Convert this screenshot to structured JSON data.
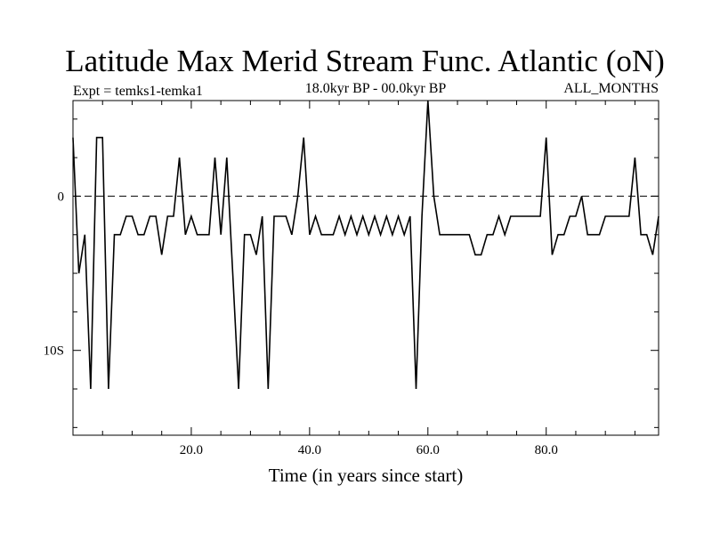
{
  "chart_data": {
    "type": "line",
    "title": "Latitude Max Merid Stream Func. Atlantic (oN)",
    "subtitle_left": "Expt = temks1-temka1",
    "subtitle_center": "18.0kyr BP - 00.0kyr BP",
    "subtitle_right": "ALL_MONTHS",
    "xlabel": "Time (in years since start)",
    "ylabel": "",
    "xlim": [
      0,
      99
    ],
    "ylim": [
      -15.5,
      6.2
    ],
    "x_ticks": [
      20,
      40,
      60,
      80
    ],
    "x_tick_labels": [
      "20.0",
      "40.0",
      "60.0",
      "80.0"
    ],
    "y_ticks": [
      0,
      -10
    ],
    "y_tick_labels": [
      "0",
      "10S"
    ],
    "zero_line": "dashed",
    "series": [
      {
        "name": "Expt = temks1-temka1",
        "color": "#000000",
        "x": [
          0,
          1,
          2,
          3,
          4,
          5,
          6,
          7,
          8,
          9,
          10,
          11,
          12,
          13,
          14,
          15,
          16,
          17,
          18,
          19,
          20,
          21,
          22,
          23,
          24,
          25,
          26,
          27,
          28,
          29,
          30,
          31,
          32,
          33,
          34,
          35,
          36,
          37,
          38,
          39,
          40,
          41,
          42,
          43,
          44,
          45,
          46,
          47,
          48,
          49,
          50,
          51,
          52,
          53,
          54,
          55,
          56,
          57,
          58,
          59,
          60,
          61,
          62,
          63,
          64,
          65,
          66,
          67,
          68,
          69,
          70,
          71,
          72,
          73,
          74,
          75,
          76,
          77,
          78,
          79,
          80,
          81,
          82,
          83,
          84,
          85,
          86,
          87,
          88,
          89,
          90,
          91,
          92,
          93,
          94,
          95,
          96,
          97,
          98,
          99
        ],
        "values": [
          3.8,
          -5,
          -2.5,
          -12.5,
          3.8,
          3.8,
          -12.5,
          -2.5,
          -2.5,
          -1.3,
          -1.3,
          -2.5,
          -2.5,
          -1.3,
          -1.3,
          -3.8,
          -1.3,
          -1.3,
          2.5,
          -2.5,
          -1.3,
          -2.5,
          -2.5,
          -2.5,
          2.5,
          -2.5,
          2.5,
          -5,
          -12.5,
          -2.5,
          -2.5,
          -3.8,
          -1.3,
          -12.5,
          -1.3,
          -1.3,
          -1.3,
          -2.5,
          0,
          3.8,
          -2.5,
          -1.3,
          -2.5,
          -2.5,
          -2.5,
          -1.3,
          -2.5,
          -1.3,
          -2.5,
          -1.3,
          -2.5,
          -1.3,
          -2.5,
          -1.3,
          -2.5,
          -1.3,
          -2.5,
          -1.3,
          -12.5,
          -1.3,
          6.2,
          0,
          -2.5,
          -2.5,
          -2.5,
          -2.5,
          -2.5,
          -2.5,
          -3.8,
          -3.8,
          -2.5,
          -2.5,
          -1.3,
          -2.5,
          -1.3,
          -1.3,
          -1.3,
          -1.3,
          -1.3,
          -1.3,
          3.8,
          -3.8,
          -2.5,
          -2.5,
          -1.3,
          -1.3,
          0,
          -2.5,
          -2.5,
          -2.5,
          -1.3,
          -1.3,
          -1.3,
          -1.3,
          -1.3,
          2.5,
          -2.5,
          -2.5,
          -3.8,
          -1.3
        ]
      }
    ]
  }
}
